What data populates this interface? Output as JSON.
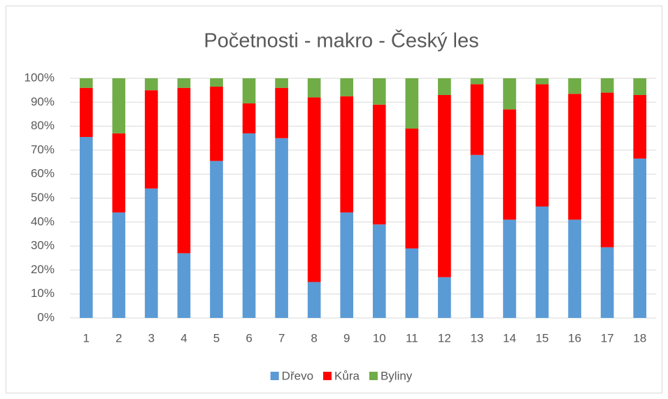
{
  "chart_data": {
    "type": "stacked_bar_100",
    "title": "Početnosti - makro - Český les",
    "categories": [
      "1",
      "2",
      "3",
      "4",
      "5",
      "6",
      "7",
      "8",
      "9",
      "10",
      "11",
      "12",
      "13",
      "14",
      "15",
      "16",
      "17",
      "18"
    ],
    "series": [
      {
        "name": "Dřevo",
        "color": "#5b9bd5",
        "values": [
          75.5,
          44,
          54,
          27,
          65.5,
          77,
          75,
          15,
          44,
          39,
          29,
          17,
          68,
          41,
          46.5,
          41,
          29.5,
          66.5
        ]
      },
      {
        "name": "Kůra",
        "color": "#ff0000",
        "values": [
          20.5,
          33,
          41,
          69,
          31,
          12.5,
          21,
          77,
          48.5,
          50,
          50,
          76,
          29.5,
          46,
          51,
          52.5,
          64.5,
          26.5
        ]
      },
      {
        "name": "Byliny",
        "color": "#70ad47",
        "values": [
          4,
          23,
          5,
          4,
          3.5,
          10.5,
          4,
          8,
          7.5,
          11,
          21,
          7,
          2.5,
          13,
          2.5,
          6.5,
          6,
          7
        ]
      }
    ],
    "ylim": [
      0,
      100
    ],
    "yticks": [
      {
        "value": 0,
        "label": "0%"
      },
      {
        "value": 10,
        "label": "10%"
      },
      {
        "value": 20,
        "label": "20%"
      },
      {
        "value": 30,
        "label": "30%"
      },
      {
        "value": 40,
        "label": "40%"
      },
      {
        "value": 50,
        "label": "50%"
      },
      {
        "value": 60,
        "label": "60%"
      },
      {
        "value": 70,
        "label": "70%"
      },
      {
        "value": 80,
        "label": "80%"
      },
      {
        "value": 90,
        "label": "90%"
      },
      {
        "value": 100,
        "label": "100%"
      }
    ],
    "grid": true,
    "legend": "bottom"
  }
}
